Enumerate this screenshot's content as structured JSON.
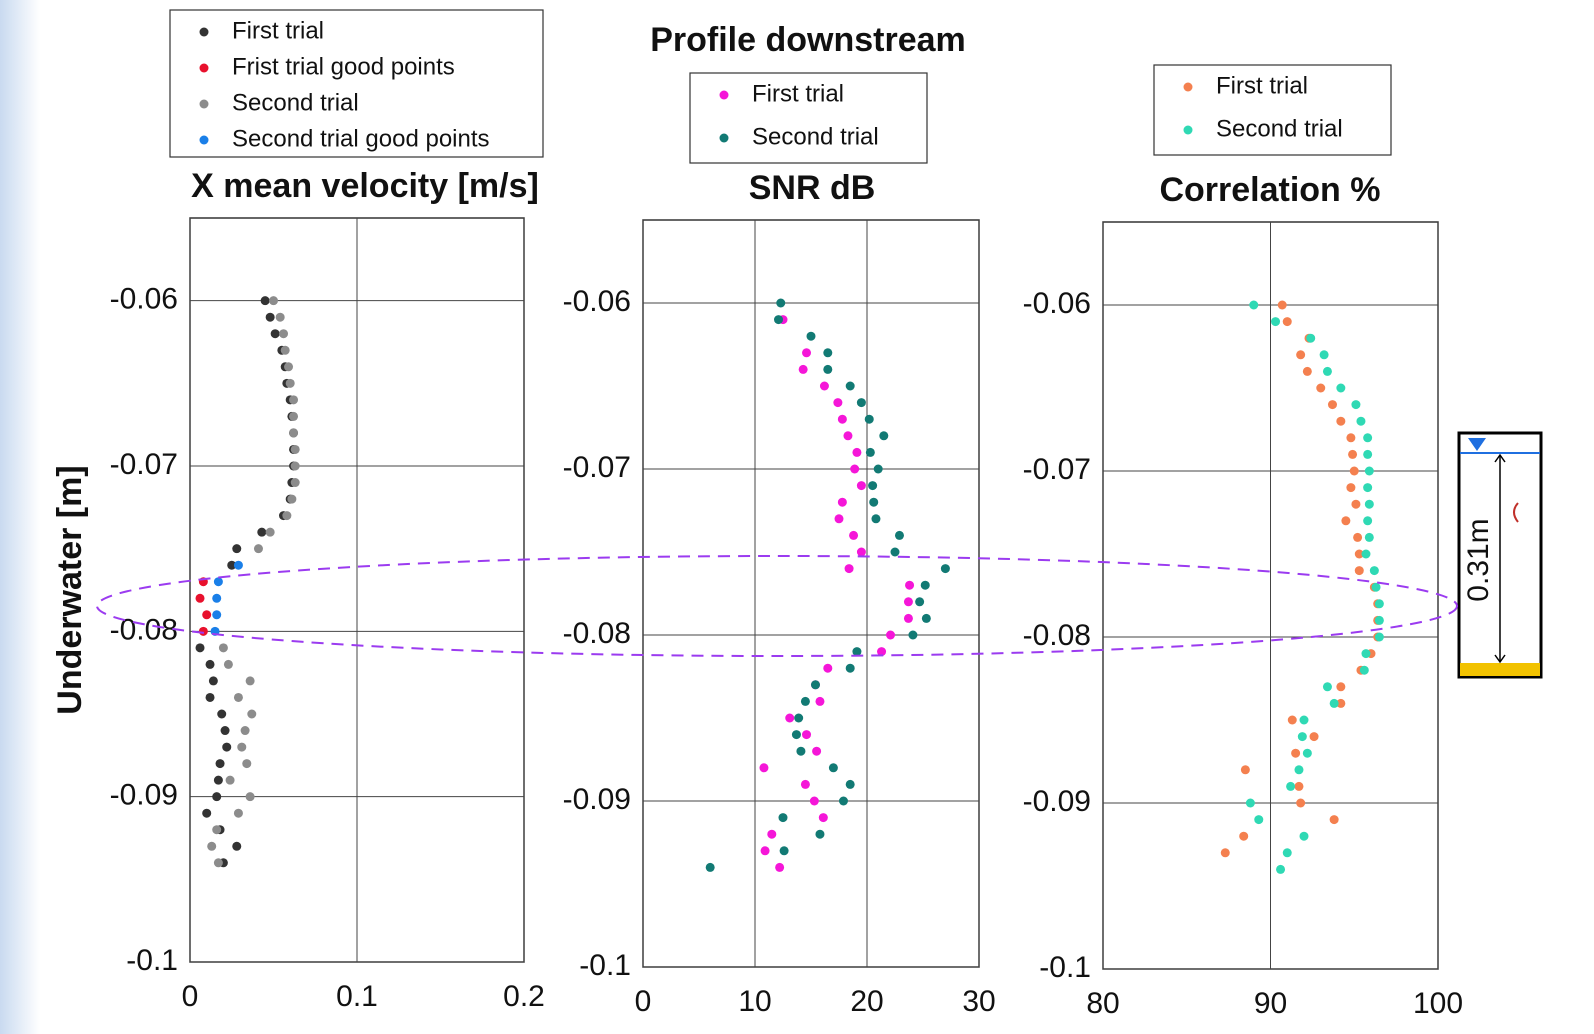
{
  "suptitle": "Profile downstream",
  "annotation_label": "0.31m",
  "chart_data": [
    {
      "type": "scatter",
      "title": "X mean velocity [m/s]",
      "y_label": "Underwater [m]",
      "legend": "above",
      "xlim": [
        0,
        0.2
      ],
      "xticks": [
        0,
        0.1,
        0.2
      ],
      "ylim": [
        -0.1,
        -0.055
      ],
      "yticks": [
        -0.1,
        -0.09,
        -0.08,
        -0.07,
        -0.06
      ],
      "grid": true,
      "series": [
        {
          "name": "First trial",
          "color": "#333333",
          "x": [
            0.045,
            0.048,
            0.051,
            0.055,
            0.057,
            0.058,
            0.06,
            0.061,
            0.062,
            0.062,
            0.062,
            0.061,
            0.06,
            0.056,
            0.043,
            0.028,
            0.025,
            0.006,
            0.012,
            0.014,
            0.012,
            0.019,
            0.021,
            0.022,
            0.018,
            0.017,
            0.016,
            0.01,
            0.018,
            0.028,
            0.02
          ],
          "y": [
            -0.06,
            -0.061,
            -0.062,
            -0.063,
            -0.064,
            -0.065,
            -0.066,
            -0.067,
            -0.068,
            -0.069,
            -0.07,
            -0.071,
            -0.072,
            -0.073,
            -0.074,
            -0.075,
            -0.076,
            -0.081,
            -0.082,
            -0.083,
            -0.084,
            -0.085,
            -0.086,
            -0.087,
            -0.088,
            -0.089,
            -0.09,
            -0.091,
            -0.092,
            -0.093,
            -0.094
          ]
        },
        {
          "name": "Frist trial good points",
          "color": "#e8112d",
          "x": [
            0.008,
            0.006,
            0.01,
            0.008
          ],
          "y": [
            -0.077,
            -0.078,
            -0.079,
            -0.08
          ]
        },
        {
          "name": "Second trial",
          "color": "#8c8c8c",
          "x": [
            0.05,
            0.054,
            0.056,
            0.057,
            0.059,
            0.06,
            0.062,
            0.062,
            0.062,
            0.063,
            0.063,
            0.063,
            0.061,
            0.058,
            0.048,
            0.041,
            0.02,
            0.023,
            0.036,
            0.029,
            0.037,
            0.033,
            0.031,
            0.034,
            0.024,
            0.036,
            0.029,
            0.016,
            0.013,
            0.017
          ],
          "y": [
            -0.06,
            -0.061,
            -0.062,
            -0.063,
            -0.064,
            -0.065,
            -0.066,
            -0.067,
            -0.068,
            -0.069,
            -0.07,
            -0.071,
            -0.072,
            -0.073,
            -0.074,
            -0.075,
            -0.081,
            -0.082,
            -0.083,
            -0.084,
            -0.085,
            -0.086,
            -0.087,
            -0.088,
            -0.089,
            -0.09,
            -0.091,
            -0.092,
            -0.093,
            -0.094
          ]
        },
        {
          "name": "Second trial good points",
          "color": "#1a7fe8",
          "x": [
            0.029,
            0.017,
            0.016,
            0.016,
            0.015
          ],
          "y": [
            -0.076,
            -0.077,
            -0.078,
            -0.079,
            -0.08
          ]
        }
      ]
    },
    {
      "type": "scatter",
      "title": "SNR dB",
      "legend": "above",
      "xlim": [
        0,
        30
      ],
      "xticks": [
        0,
        10,
        20,
        30
      ],
      "ylim": [
        -0.1,
        -0.055
      ],
      "yticks": [
        -0.1,
        -0.09,
        -0.08,
        -0.07,
        -0.06
      ],
      "grid": true,
      "series": [
        {
          "name": "First trial",
          "color": "#f516d8",
          "x": [
            12.5,
            14.6,
            14.3,
            16.2,
            17.4,
            17.8,
            18.3,
            19.1,
            18.9,
            19.5,
            17.8,
            17.5,
            18.8,
            19.5,
            18.4,
            23.8,
            23.7,
            23.7,
            22.1,
            21.3,
            16.5,
            15.4,
            15.8,
            13.1,
            14.6,
            15.5,
            10.8,
            14.5,
            15.3,
            16.1,
            11.5,
            10.9,
            12.2
          ],
          "y": [
            -0.061,
            -0.063,
            -0.064,
            -0.065,
            -0.066,
            -0.067,
            -0.068,
            -0.069,
            -0.07,
            -0.071,
            -0.072,
            -0.073,
            -0.074,
            -0.075,
            -0.076,
            -0.077,
            -0.078,
            -0.079,
            -0.08,
            -0.081,
            -0.082,
            -0.083,
            -0.084,
            -0.085,
            -0.086,
            -0.087,
            -0.088,
            -0.089,
            -0.09,
            -0.091,
            -0.092,
            -0.093,
            -0.094
          ]
        },
        {
          "name": "Second trial",
          "color": "#127a74",
          "x": [
            12.3,
            12.1,
            15,
            16.5,
            16.5,
            18.5,
            19.5,
            20.2,
            21.5,
            20.3,
            21,
            20.5,
            20.6,
            20.8,
            22.9,
            22.5,
            27,
            25.2,
            24.7,
            25.3,
            24.1,
            19.1,
            18.5,
            15.4,
            14.5,
            13.9,
            13.7,
            14.1,
            17,
            18.5,
            17.9,
            12.5,
            15.8,
            12.6,
            6
          ],
          "y": [
            -0.06,
            -0.061,
            -0.062,
            -0.063,
            -0.064,
            -0.065,
            -0.066,
            -0.067,
            -0.068,
            -0.069,
            -0.07,
            -0.071,
            -0.072,
            -0.073,
            -0.074,
            -0.075,
            -0.076,
            -0.077,
            -0.078,
            -0.079,
            -0.08,
            -0.081,
            -0.082,
            -0.083,
            -0.084,
            -0.085,
            -0.086,
            -0.087,
            -0.088,
            -0.089,
            -0.09,
            -0.091,
            -0.092,
            -0.093,
            -0.094
          ]
        }
      ]
    },
    {
      "type": "scatter",
      "title": "Correlation %",
      "legend": "above",
      "xlim": [
        80,
        100
      ],
      "xticks": [
        80,
        90,
        100
      ],
      "ylim": [
        -0.1,
        -0.055
      ],
      "yticks": [
        -0.1,
        -0.09,
        -0.08,
        -0.07,
        -0.06
      ],
      "grid": true,
      "series": [
        {
          "name": "First trial",
          "color": "#f4804f",
          "x": [
            90.7,
            91,
            92.3,
            91.8,
            92.2,
            93,
            93.7,
            94.2,
            94.8,
            94.9,
            95,
            94.8,
            95.1,
            94.5,
            95.2,
            95.3,
            95.3,
            96.2,
            96.4,
            96.4,
            96.4,
            96,
            95.4,
            94.2,
            94.2,
            91.3,
            92.6,
            91.5,
            88.5,
            91.7,
            91.8,
            93.8,
            88.4,
            87.3
          ],
          "y": [
            -0.06,
            -0.061,
            -0.062,
            -0.063,
            -0.064,
            -0.065,
            -0.066,
            -0.067,
            -0.068,
            -0.069,
            -0.07,
            -0.071,
            -0.072,
            -0.073,
            -0.074,
            -0.075,
            -0.076,
            -0.077,
            -0.078,
            -0.079,
            -0.08,
            -0.081,
            -0.082,
            -0.083,
            -0.084,
            -0.085,
            -0.086,
            -0.087,
            -0.088,
            -0.089,
            -0.09,
            -0.091,
            -0.092,
            -0.093
          ]
        },
        {
          "name": "Second trial",
          "color": "#2fd9b4",
          "x": [
            89,
            90.3,
            92.4,
            93.2,
            93.4,
            94.2,
            95.1,
            95.4,
            95.8,
            95.8,
            95.9,
            95.8,
            95.9,
            95.8,
            95.9,
            95.7,
            96.2,
            96.3,
            96.5,
            96.5,
            96.5,
            95.7,
            95.6,
            93.4,
            93.8,
            92,
            91.9,
            92.2,
            91.7,
            91.2,
            88.8,
            89.3,
            92,
            91,
            90.6
          ],
          "y": [
            -0.06,
            -0.061,
            -0.062,
            -0.063,
            -0.064,
            -0.065,
            -0.066,
            -0.067,
            -0.068,
            -0.069,
            -0.07,
            -0.071,
            -0.072,
            -0.073,
            -0.074,
            -0.075,
            -0.076,
            -0.077,
            -0.078,
            -0.079,
            -0.08,
            -0.081,
            -0.082,
            -0.083,
            -0.084,
            -0.085,
            -0.086,
            -0.087,
            -0.088,
            -0.089,
            -0.09,
            -0.091,
            -0.092,
            -0.093,
            -0.094
          ]
        }
      ]
    }
  ]
}
